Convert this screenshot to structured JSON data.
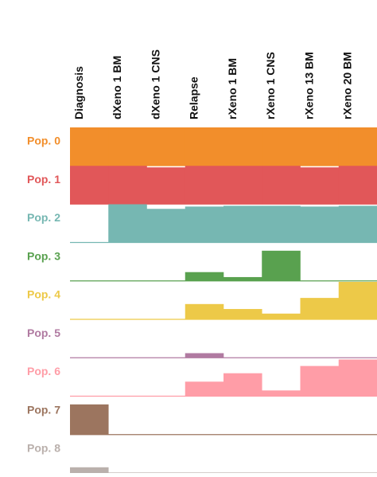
{
  "chart_data": {
    "type": "rowbars",
    "categories": [
      "Diagnosis",
      "dXeno 1 BM",
      "dXeno 1 CNS",
      "Relapse",
      "rXeno 1 BM",
      "rXeno 1 CNS",
      "rXeno 13 BM",
      "rXeno 20 BM"
    ],
    "ylim": [
      0,
      100
    ],
    "series": [
      {
        "name": "Pop. 0",
        "color": "#f28e2b",
        "values": [
          100,
          100,
          100,
          100,
          100,
          100,
          100,
          100
        ]
      },
      {
        "name": "Pop. 1",
        "color": "#e15759",
        "values": [
          100,
          100,
          96,
          100,
          100,
          100,
          96,
          100
        ]
      },
      {
        "name": "Pop. 2",
        "color": "#76b7b2",
        "values": [
          0,
          100,
          88,
          94,
          96,
          96,
          94,
          96
        ]
      },
      {
        "name": "Pop. 3",
        "color": "#59a14f",
        "values": [
          0,
          0,
          0,
          23,
          10,
          79,
          0,
          0
        ]
      },
      {
        "name": "Pop. 4",
        "color": "#edc948",
        "values": [
          0,
          0,
          0,
          40,
          27,
          15,
          56,
          98
        ]
      },
      {
        "name": "Pop. 5",
        "color": "#b07aa1",
        "values": [
          0,
          0,
          0,
          12,
          0,
          0,
          0,
          0
        ]
      },
      {
        "name": "Pop. 6",
        "color": "#ff9da7",
        "values": [
          0,
          0,
          0,
          38,
          60,
          15,
          79,
          96
        ]
      },
      {
        "name": "Pop. 7",
        "color": "#9c755f",
        "values": [
          79,
          0,
          0,
          0,
          0,
          0,
          0,
          0
        ]
      },
      {
        "name": "Pop. 8",
        "color": "#bab0ac",
        "values": [
          15,
          0,
          0,
          0,
          0,
          0,
          0,
          0
        ]
      }
    ]
  }
}
